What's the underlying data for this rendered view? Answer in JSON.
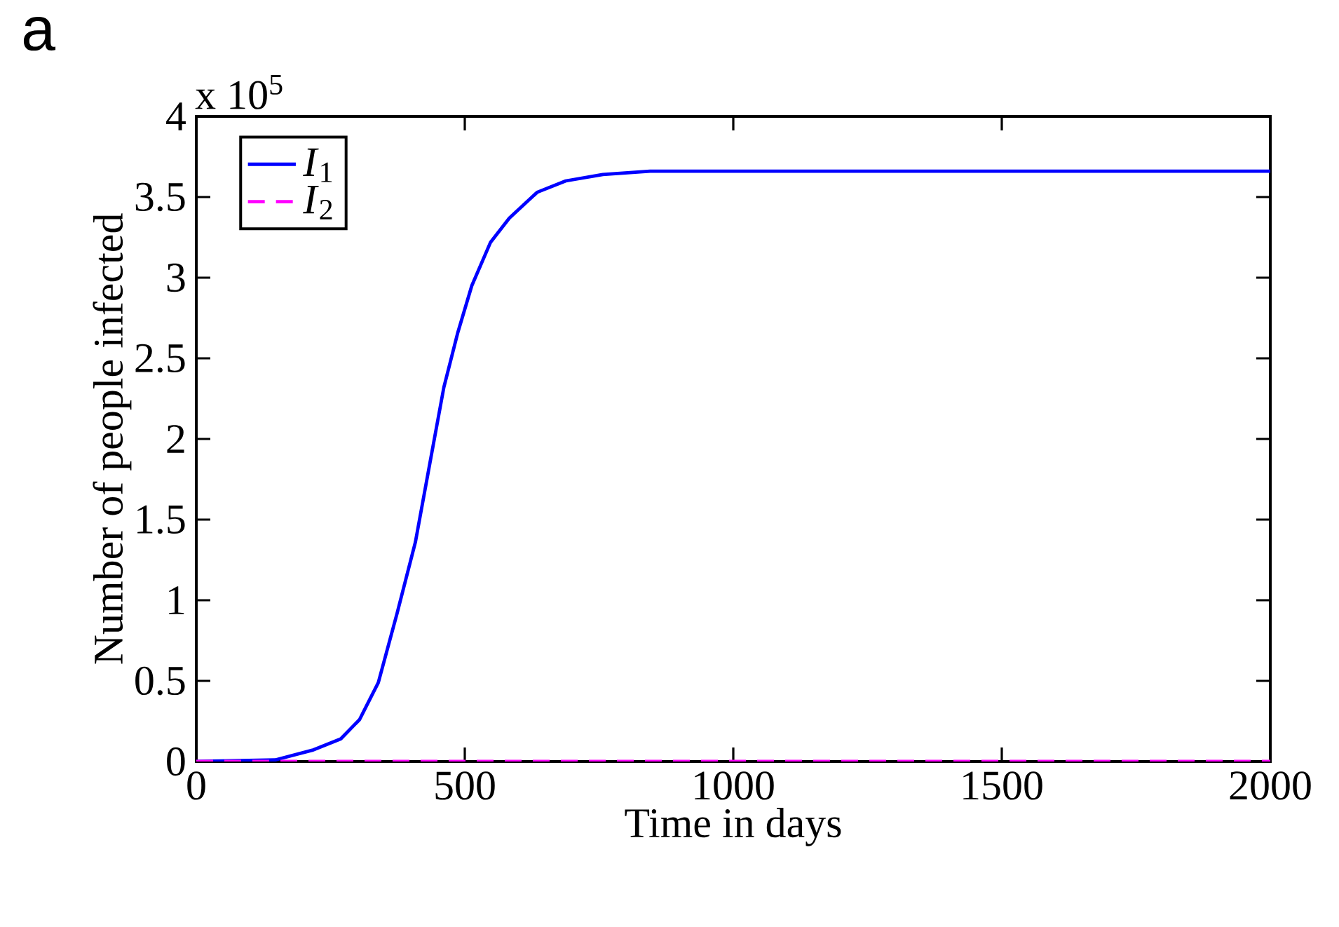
{
  "chart_data": {
    "type": "line",
    "title": "a",
    "xlabel": "Time in days",
    "ylabel": "Number of people infected",
    "annotations": [
      "x 10$^{5}$"
    ],
    "xlim": [
      0,
      2000
    ],
    "xticks": [
      0,
      500,
      1000,
      1500,
      2000
    ],
    "ylim": [
      0,
      4
    ],
    "yticks": [
      0,
      0.5,
      1,
      1.5,
      2,
      2.5,
      3,
      3.5,
      4
    ],
    "grid": false,
    "legend": "top left",
    "series": [
      {
        "name": "*I*$_{1}$",
        "color": "#0000ff",
        "line_style": "solid",
        "x": [
          0,
          147,
          216,
          269,
          304,
          339,
          374,
          408,
          435,
          461,
          487,
          513,
          548,
          583,
          635,
          688,
          757,
          845,
          1000,
          1500,
          2000
        ],
        "values": [
          0,
          0.01,
          0.07,
          0.14,
          0.26,
          0.49,
          0.92,
          1.36,
          1.85,
          2.32,
          2.66,
          2.95,
          3.22,
          3.37,
          3.53,
          3.6,
          3.64,
          3.66,
          3.66,
          3.66,
          3.66
        ]
      },
      {
        "name": "*I*$_{2}$",
        "color": "#ff00ff",
        "line_style": "dashed",
        "x": [
          0,
          2000
        ],
        "values": [
          0,
          0
        ]
      }
    ]
  }
}
